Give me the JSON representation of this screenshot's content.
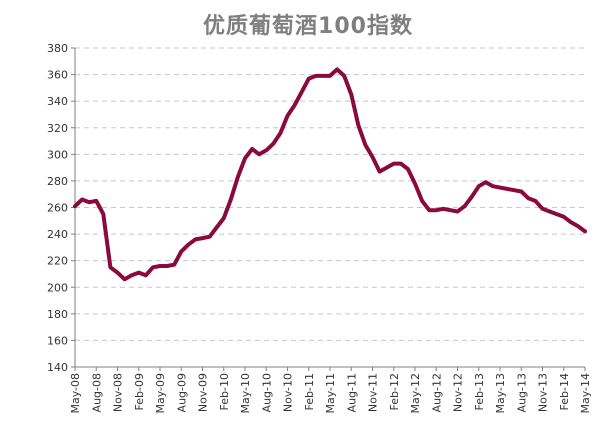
{
  "chart_data": {
    "type": "line",
    "title": "优质葡萄酒100指数",
    "xlabel": "",
    "ylabel": "",
    "ylim": [
      140,
      380
    ],
    "yticks": [
      140,
      160,
      180,
      200,
      220,
      240,
      260,
      280,
      300,
      320,
      340,
      360,
      380
    ],
    "grid": "horizontal dashed",
    "legend": "none",
    "line_color": "#8b0a3c",
    "x_tick_labels": [
      "May-08",
      "Aug-08",
      "Nov-08",
      "Feb-09",
      "May-09",
      "Aug-09",
      "Nov-09",
      "Feb-10",
      "May-10",
      "Aug-10",
      "Nov-10",
      "Feb-11",
      "May-11",
      "Aug-11",
      "Nov-11",
      "Feb-12",
      "May-12",
      "Aug-12",
      "Nov-12",
      "Feb-13",
      "May-13",
      "Aug-13",
      "Nov-13",
      "Feb-14",
      "May-14"
    ],
    "x": [
      "May-08",
      "Jun-08",
      "Jul-08",
      "Aug-08",
      "Sep-08",
      "Oct-08",
      "Nov-08",
      "Dec-08",
      "Jan-09",
      "Feb-09",
      "Mar-09",
      "Apr-09",
      "May-09",
      "Jun-09",
      "Jul-09",
      "Aug-09",
      "Sep-09",
      "Oct-09",
      "Nov-09",
      "Dec-09",
      "Jan-10",
      "Feb-10",
      "Mar-10",
      "Apr-10",
      "May-10",
      "Jun-10",
      "Jul-10",
      "Aug-10",
      "Sep-10",
      "Oct-10",
      "Nov-10",
      "Dec-10",
      "Jan-11",
      "Feb-11",
      "Mar-11",
      "Apr-11",
      "May-11",
      "Jun-11",
      "Jul-11",
      "Aug-11",
      "Sep-11",
      "Oct-11",
      "Nov-11",
      "Dec-11",
      "Jan-12",
      "Feb-12",
      "Mar-12",
      "Apr-12",
      "May-12",
      "Jun-12",
      "Jul-12",
      "Aug-12",
      "Sep-12",
      "Oct-12",
      "Nov-12",
      "Dec-12",
      "Jan-13",
      "Feb-13",
      "Mar-13",
      "Apr-13",
      "May-13",
      "Jun-13",
      "Jul-13",
      "Aug-13",
      "Sep-13",
      "Oct-13",
      "Nov-13",
      "Dec-13",
      "Jan-14",
      "Feb-14",
      "Mar-14",
      "Apr-14",
      "May-14"
    ],
    "series": [
      {
        "values": [
          261,
          266,
          264,
          265,
          255,
          215,
          211,
          206,
          209,
          211,
          209,
          215,
          216,
          216,
          217,
          227,
          232,
          236,
          237,
          238,
          245,
          252,
          266,
          283,
          297,
          304,
          300,
          303,
          308,
          316,
          329,
          337,
          347,
          357,
          359,
          359,
          359,
          364,
          359,
          345,
          322,
          307,
          298,
          287,
          290,
          293,
          293,
          289,
          278,
          265,
          258,
          258,
          259,
          258,
          257,
          261,
          268,
          276,
          279,
          276,
          275,
          274,
          273,
          272,
          267,
          265,
          259,
          257,
          255,
          253,
          249,
          246,
          242
        ]
      }
    ]
  }
}
